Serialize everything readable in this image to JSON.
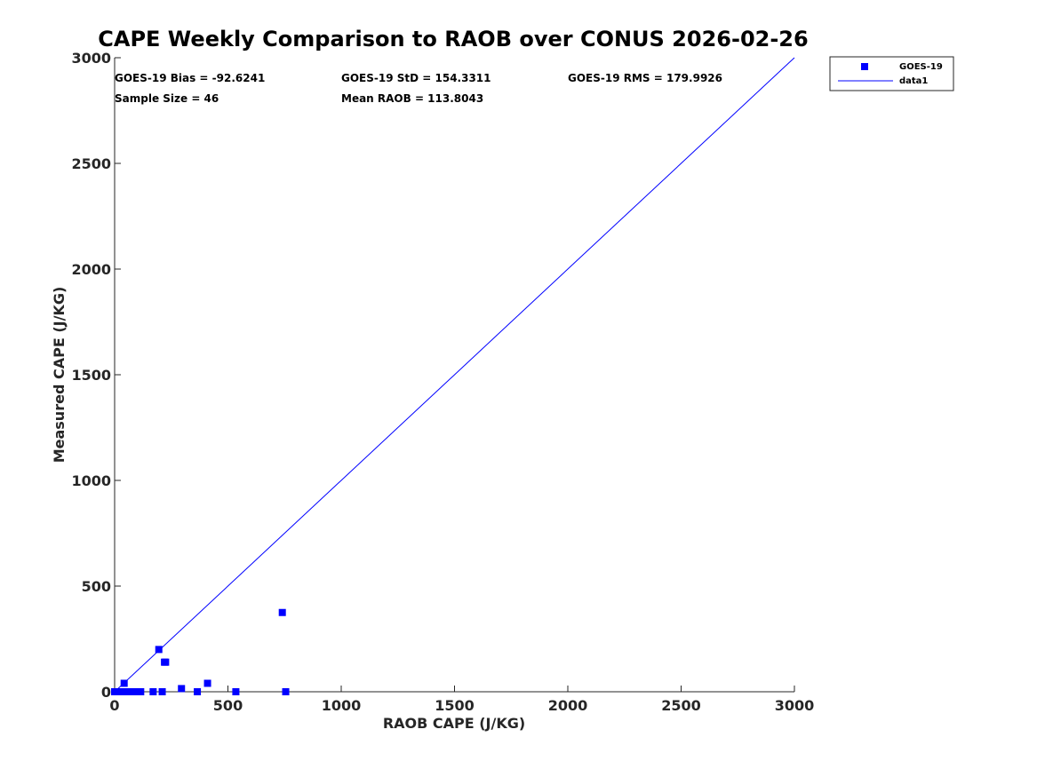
{
  "chart_data": {
    "type": "scatter",
    "title": "CAPE Weekly Comparison to RAOB over CONUS 2026-02-26",
    "xlabel": "RAOB CAPE (J/KG)",
    "ylabel": "Measured CAPE (J/KG)",
    "xlim": [
      0,
      3000
    ],
    "ylim": [
      0,
      3000
    ],
    "xticks": [
      0,
      500,
      1000,
      1500,
      2000,
      2500,
      3000
    ],
    "yticks": [
      0,
      500,
      1000,
      1500,
      2000,
      2500,
      3000
    ],
    "xtick_labels": [
      "0",
      "500",
      "1000",
      "1500",
      "2000",
      "2500",
      "3000"
    ],
    "ytick_labels": [
      "0",
      "500",
      "1000",
      "1500",
      "2000",
      "2500",
      "3000"
    ],
    "grid": false,
    "stats": {
      "bias": "GOES-19 Bias = -92.6241",
      "std": "GOES-19 StD = 154.3311",
      "rms": "GOES-19 RMS = 179.9926",
      "sample_size": "Sample Size = 46",
      "mean_raob": "Mean RAOB = 113.8043"
    },
    "legend": {
      "position": "top-right-outside",
      "entries": [
        "GOES-19",
        "data1"
      ]
    },
    "series": [
      {
        "name": "GOES-19",
        "kind": "scatter",
        "marker": "square",
        "color": "#0000ff",
        "points": [
          [
            0,
            0
          ],
          [
            5,
            0
          ],
          [
            10,
            0
          ],
          [
            15,
            0
          ],
          [
            20,
            0
          ],
          [
            25,
            0
          ],
          [
            30,
            0
          ],
          [
            35,
            0
          ],
          [
            40,
            0
          ],
          [
            42,
            40
          ],
          [
            45,
            0
          ],
          [
            50,
            0
          ],
          [
            55,
            0
          ],
          [
            60,
            0
          ],
          [
            90,
            0
          ],
          [
            100,
            0
          ],
          [
            110,
            0
          ],
          [
            115,
            0
          ],
          [
            170,
            0
          ],
          [
            195,
            200
          ],
          [
            210,
            0
          ],
          [
            220,
            140
          ],
          [
            225,
            140
          ],
          [
            295,
            15
          ],
          [
            365,
            0
          ],
          [
            410,
            40
          ],
          [
            535,
            0
          ],
          [
            740,
            375
          ],
          [
            755,
            0
          ]
        ]
      },
      {
        "name": "data1",
        "kind": "line",
        "color": "#0000ff",
        "points": [
          [
            0,
            0
          ],
          [
            3000,
            3000
          ]
        ]
      }
    ]
  }
}
